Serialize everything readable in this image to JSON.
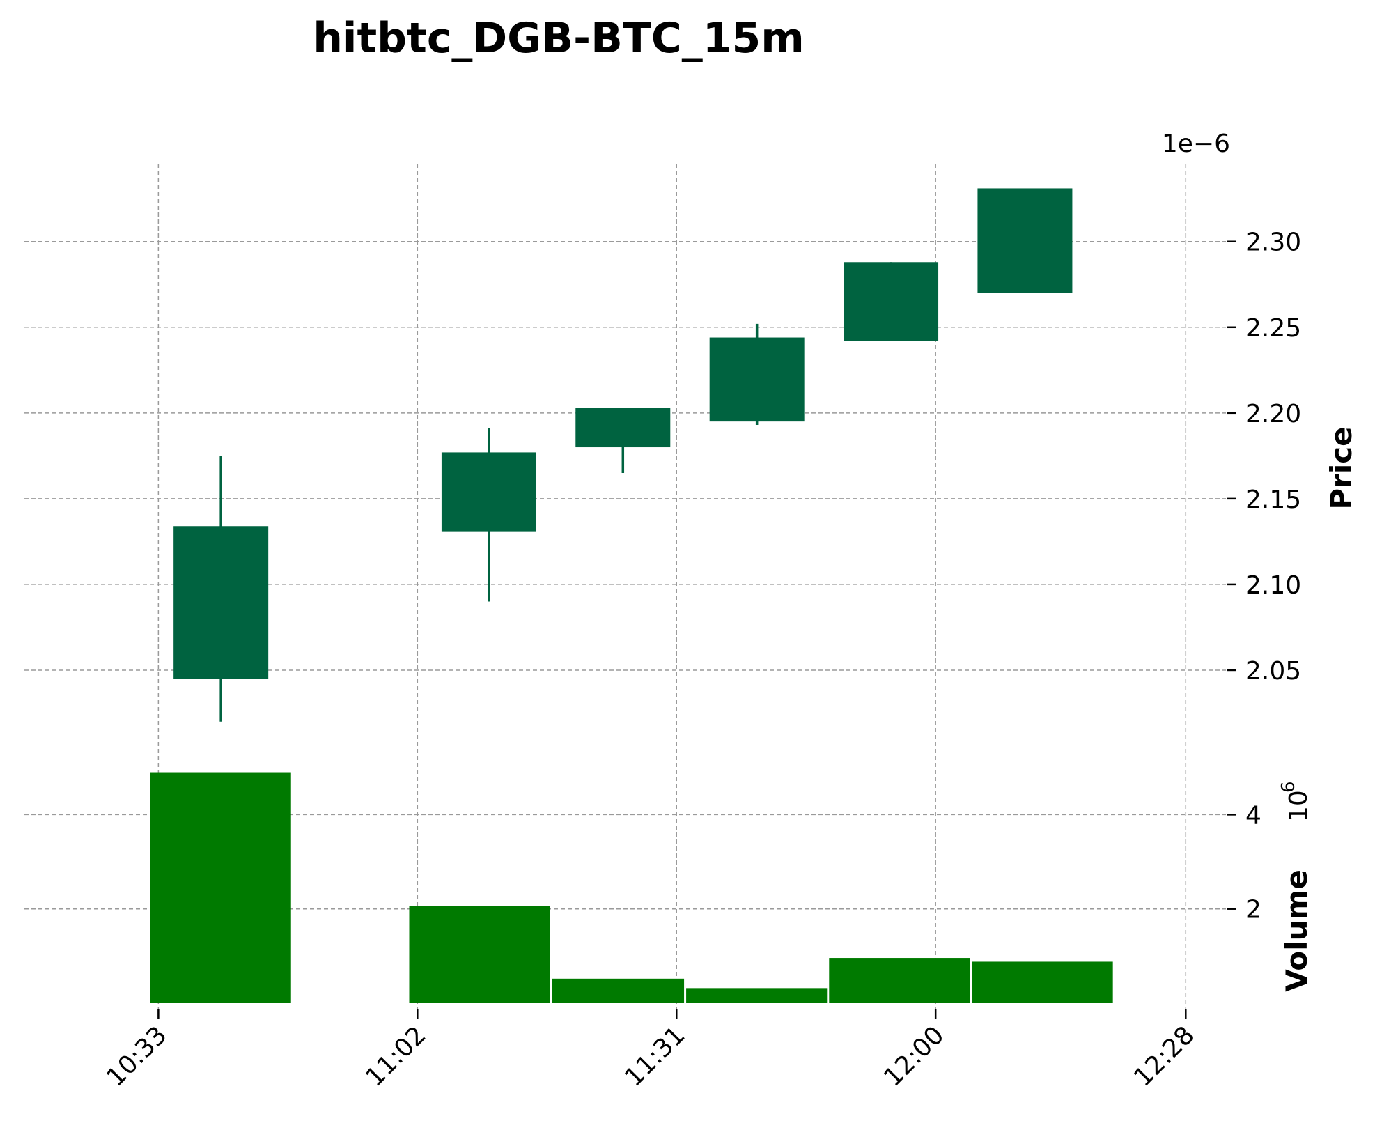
{
  "chart_data": {
    "type": "candlestick",
    "title": "hitbtc_DGB-BTC_15m",
    "price_axis": {
      "label": "Price",
      "multiplier_label": "1e−6",
      "scale": 1e-06,
      "ticks": [
        2.05,
        2.1,
        2.15,
        2.2,
        2.25,
        2.3
      ],
      "tick_labels": [
        "2.05",
        "2.10",
        "2.15",
        "2.20",
        "2.25",
        "2.30"
      ],
      "ylim": [
        2.0,
        2.345
      ]
    },
    "volume_axis": {
      "label": "Volume",
      "multiplier_label": "10",
      "multiplier_exponent": "6",
      "scale": 1000000,
      "ticks": [
        2,
        4
      ],
      "tick_labels": [
        "2",
        "4"
      ],
      "ylim": [
        0,
        5.1
      ]
    },
    "time_axis": {
      "ticks": [
        "10:33",
        "11:02",
        "11:31",
        "12:00",
        "12:28"
      ],
      "tick_minutes": [
        633,
        662,
        691,
        720,
        748
      ],
      "xlim_minutes": [
        618,
        752.5
      ]
    },
    "candles": [
      {
        "time": "10:40",
        "open": 2.045,
        "high": 2.175,
        "low": 2.02,
        "close": 2.134
      },
      {
        "time": "11:10",
        "open": 2.131,
        "high": 2.191,
        "low": 2.09,
        "close": 2.177
      },
      {
        "time": "11:25",
        "open": 2.18,
        "high": 2.203,
        "low": 2.165,
        "close": 2.203
      },
      {
        "time": "11:40",
        "open": 2.195,
        "high": 2.252,
        "low": 2.193,
        "close": 2.244
      },
      {
        "time": "11:55",
        "open": 2.242,
        "high": 2.288,
        "low": 2.242,
        "close": 2.288
      },
      {
        "time": "12:10",
        "open": 2.27,
        "high": 2.331,
        "low": 2.27,
        "close": 2.331
      }
    ],
    "volume_bars": [
      {
        "start": "10:32",
        "end": "10:48",
        "value": 4.9
      },
      {
        "start": "11:01",
        "end": "11:17",
        "value": 2.06
      },
      {
        "start": "11:17",
        "end": "11:32",
        "value": 0.52
      },
      {
        "start": "11:32",
        "end": "11:48",
        "value": 0.32
      },
      {
        "start": "11:48",
        "end": "12:04",
        "value": 0.96
      },
      {
        "start": "12:04",
        "end": "12:20",
        "value": 0.88
      }
    ],
    "grid": true,
    "colors": {
      "up_candle": "#006340",
      "volume": "#007a00",
      "grid": "#9a9a9a"
    }
  }
}
